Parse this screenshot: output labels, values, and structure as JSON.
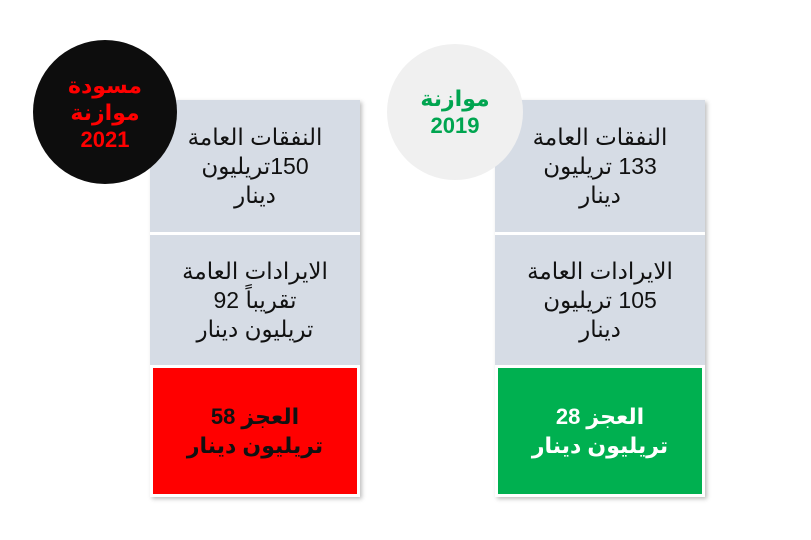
{
  "columns": [
    {
      "badge": {
        "lines": [
          "مسودة",
          "موازنة",
          "2021"
        ]
      },
      "cells": [
        {
          "lines": [
            "النفقات العامة",
            "150تريليون",
            "دينار"
          ]
        },
        {
          "lines": [
            "الايرادات العامة",
            "تقريباً 92",
            "تريليون دينار"
          ]
        },
        {
          "lines": [
            "العجز 58",
            "تريليون دينار"
          ]
        }
      ]
    },
    {
      "badge": {
        "lines": [
          "موازنة",
          "2019"
        ]
      },
      "cells": [
        {
          "lines": [
            "النفقات العامة",
            "133 تريليون",
            "دينار"
          ]
        },
        {
          "lines": [
            "الايرادات العامة",
            "105 تريليون",
            "دينار"
          ]
        },
        {
          "lines": [
            "العجز 28",
            "تريليون دينار"
          ]
        }
      ]
    }
  ]
}
